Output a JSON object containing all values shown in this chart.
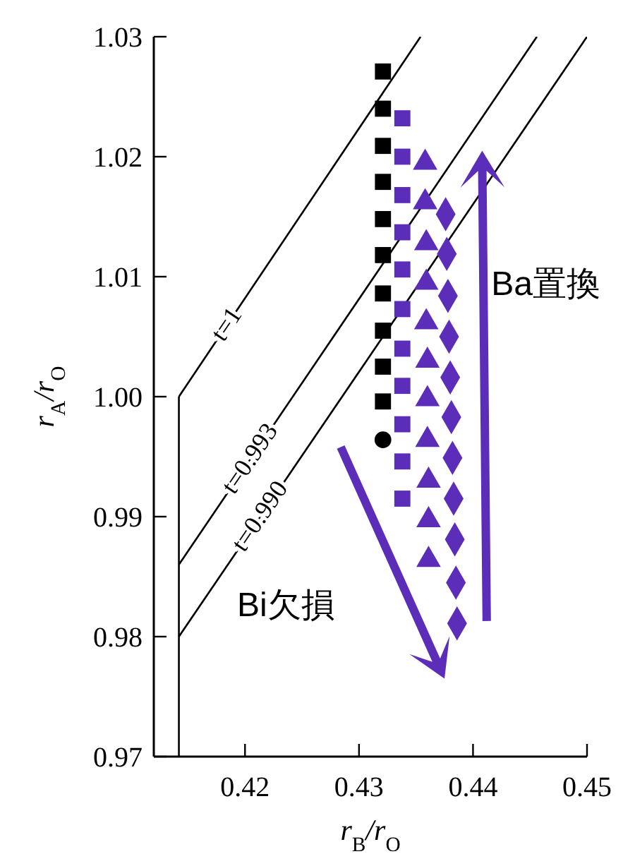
{
  "chart_data": {
    "type": "scatter",
    "xlabel": "r$_{B}$/r$_{O}$",
    "ylabel": "r$_{A}$/r$_{O}$",
    "xlim": [
      0.412,
      0.45
    ],
    "xticks": [
      0.42,
      0.43,
      0.44,
      0.45
    ],
    "ylim": [
      0.97,
      1.03
    ],
    "yticks": [
      0.97,
      0.98,
      0.99,
      {
        "value": 1.0,
        "label": "1.00"
      },
      1.01,
      1.02,
      1.03
    ],
    "grid": false,
    "legend": false,
    "series": [
      {
        "name": "t=1",
        "type": "line",
        "color": "#000000",
        "x": [
          0.4142,
          0.4354
        ],
        "values": [
          1.0,
          1.03
        ]
      },
      {
        "name": "t=0.993",
        "type": "line",
        "color": "#000000",
        "x": [
          0.4142,
          0.4456
        ],
        "values": [
          0.986,
          1.03
        ]
      },
      {
        "name": "t=0.990",
        "type": "line",
        "color": "#000000",
        "x": [
          0.4142,
          0.45
        ],
        "values": [
          0.98,
          1.03
        ]
      },
      {
        "type": "line",
        "color": "#000000",
        "x": [
          0.4142,
          0.4142
        ],
        "values": [
          0.97,
          1.0
        ]
      },
      {
        "type": "scatter",
        "marker": "square",
        "color": "#000000",
        "x": [
          0.4321,
          0.4321,
          0.4321,
          0.4321,
          0.4321,
          0.4321,
          0.4321,
          0.4321,
          0.4321,
          0.4321
        ],
        "values": [
          1.0271,
          1.024,
          1.0209,
          1.0179,
          1.0148,
          1.0118,
          1.0086,
          1.0055,
          1.0025,
          0.9996
        ]
      },
      {
        "type": "scatter",
        "marker": "circle",
        "color": "#000000",
        "x": [
          0.4321
        ],
        "values": [
          0.9964
        ]
      },
      {
        "type": "scatter",
        "marker": "square",
        "color": "#5b2db8",
        "x": [
          0.4338,
          0.4338,
          0.4338,
          0.4338,
          0.4338,
          0.4338,
          0.4338,
          0.4338,
          0.4338,
          0.4338,
          0.4338
        ],
        "values": [
          1.0232,
          1.02,
          1.0168,
          1.0137,
          1.0106,
          1.0073,
          1.004,
          1.0009,
          0.9977,
          0.9946,
          0.9915
        ]
      },
      {
        "type": "scatter",
        "marker": "triangle",
        "color": "#5b2db8",
        "x": [
          0.4358,
          0.4358,
          0.4359,
          0.4359,
          0.4359,
          0.436,
          0.436,
          0.436,
          0.4361,
          0.4361,
          0.4361
        ],
        "values": [
          1.0195,
          1.0162,
          1.0128,
          1.0095,
          1.0062,
          1.003,
          0.9998,
          0.9964,
          0.993,
          0.9897,
          0.9864
        ]
      },
      {
        "type": "scatter",
        "marker": "diamond",
        "color": "#5b2db8",
        "x": [
          0.4376,
          0.4377,
          0.4378,
          0.4379,
          0.438,
          0.4381,
          0.4382,
          0.4383,
          0.4384,
          0.4385,
          0.4386
        ],
        "values": [
          1.0152,
          1.0119,
          1.0084,
          1.005,
          1.0016,
          0.9983,
          0.9949,
          0.9915,
          0.9881,
          0.9845,
          0.9811
        ]
      }
    ],
    "annotations": [
      "Ba置換",
      "Bi欠損"
    ]
  }
}
